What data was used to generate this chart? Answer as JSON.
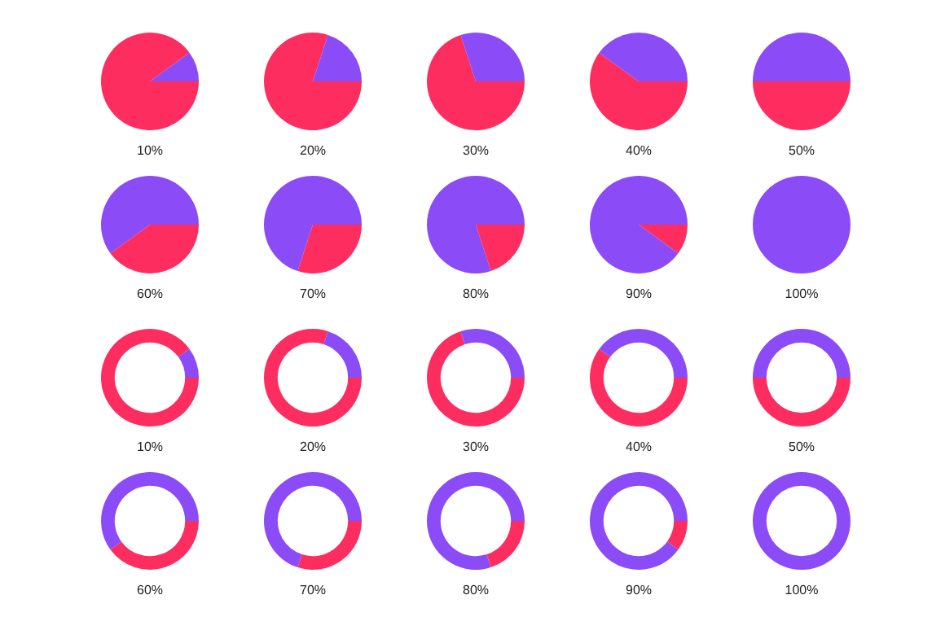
{
  "chart_data": [
    {
      "type": "pie",
      "categories": [
        null,
        null
      ],
      "values": [
        90,
        10
      ],
      "colors": [
        "#fe2d5f",
        "#8b4cf7"
      ],
      "annotations": [
        "10%"
      ]
    },
    {
      "type": "pie",
      "categories": [
        null,
        null
      ],
      "values": [
        80,
        20
      ],
      "colors": [
        "#fe2d5f",
        "#8b4cf7"
      ],
      "annotations": [
        "20%"
      ]
    },
    {
      "type": "pie",
      "categories": [
        null,
        null
      ],
      "values": [
        70,
        30
      ],
      "colors": [
        "#fe2d5f",
        "#8b4cf7"
      ],
      "annotations": [
        "30%"
      ]
    },
    {
      "type": "pie",
      "categories": [
        null,
        null
      ],
      "values": [
        60,
        40
      ],
      "colors": [
        "#fe2d5f",
        "#8b4cf7"
      ],
      "annotations": [
        "40%"
      ]
    },
    {
      "type": "pie",
      "categories": [
        null,
        null
      ],
      "values": [
        50,
        50
      ],
      "colors": [
        "#fe2d5f",
        "#8b4cf7"
      ],
      "annotations": [
        "50%"
      ]
    },
    {
      "type": "pie",
      "categories": [
        null,
        null
      ],
      "values": [
        40,
        60
      ],
      "colors": [
        "#fe2d5f",
        "#8b4cf7"
      ],
      "annotations": [
        "60%"
      ]
    },
    {
      "type": "pie",
      "categories": [
        null,
        null
      ],
      "values": [
        30,
        70
      ],
      "colors": [
        "#fe2d5f",
        "#8b4cf7"
      ],
      "annotations": [
        "70%"
      ]
    },
    {
      "type": "pie",
      "categories": [
        null,
        null
      ],
      "values": [
        20,
        80
      ],
      "colors": [
        "#fe2d5f",
        "#8b4cf7"
      ],
      "annotations": [
        "80%"
      ]
    },
    {
      "type": "pie",
      "categories": [
        null,
        null
      ],
      "values": [
        10,
        90
      ],
      "colors": [
        "#fe2d5f",
        "#8b4cf7"
      ],
      "annotations": [
        "90%"
      ]
    },
    {
      "type": "pie",
      "categories": [
        null,
        null
      ],
      "values": [
        0,
        100
      ],
      "colors": [
        "#fe2d5f",
        "#8b4cf7"
      ],
      "annotations": [
        "100%"
      ]
    },
    {
      "type": "donut",
      "categories": [
        null,
        null
      ],
      "values": [
        90,
        10
      ],
      "colors": [
        "#fe2d5f",
        "#8b4cf7"
      ],
      "annotations": [
        "10%"
      ]
    },
    {
      "type": "donut",
      "categories": [
        null,
        null
      ],
      "values": [
        80,
        20
      ],
      "colors": [
        "#fe2d5f",
        "#8b4cf7"
      ],
      "annotations": [
        "20%"
      ]
    },
    {
      "type": "donut",
      "categories": [
        null,
        null
      ],
      "values": [
        70,
        30
      ],
      "colors": [
        "#fe2d5f",
        "#8b4cf7"
      ],
      "annotations": [
        "30%"
      ]
    },
    {
      "type": "donut",
      "categories": [
        null,
        null
      ],
      "values": [
        60,
        40
      ],
      "colors": [
        "#fe2d5f",
        "#8b4cf7"
      ],
      "annotations": [
        "40%"
      ]
    },
    {
      "type": "donut",
      "categories": [
        null,
        null
      ],
      "values": [
        50,
        50
      ],
      "colors": [
        "#fe2d5f",
        "#8b4cf7"
      ],
      "annotations": [
        "50%"
      ]
    },
    {
      "type": "donut",
      "categories": [
        null,
        null
      ],
      "values": [
        40,
        60
      ],
      "colors": [
        "#fe2d5f",
        "#8b4cf7"
      ],
      "annotations": [
        "60%"
      ]
    },
    {
      "type": "donut",
      "categories": [
        null,
        null
      ],
      "values": [
        30,
        70
      ],
      "colors": [
        "#fe2d5f",
        "#8b4cf7"
      ],
      "annotations": [
        "70%"
      ]
    },
    {
      "type": "donut",
      "categories": [
        null,
        null
      ],
      "values": [
        20,
        80
      ],
      "colors": [
        "#fe2d5f",
        "#8b4cf7"
      ],
      "annotations": [
        "80%"
      ]
    },
    {
      "type": "donut",
      "categories": [
        null,
        null
      ],
      "values": [
        10,
        90
      ],
      "colors": [
        "#fe2d5f",
        "#8b4cf7"
      ],
      "annotations": [
        "90%"
      ]
    },
    {
      "type": "donut",
      "categories": [
        null,
        null
      ],
      "values": [
        0,
        100
      ],
      "colors": [
        "#fe2d5f",
        "#8b4cf7"
      ],
      "annotations": [
        "100%"
      ]
    }
  ]
}
